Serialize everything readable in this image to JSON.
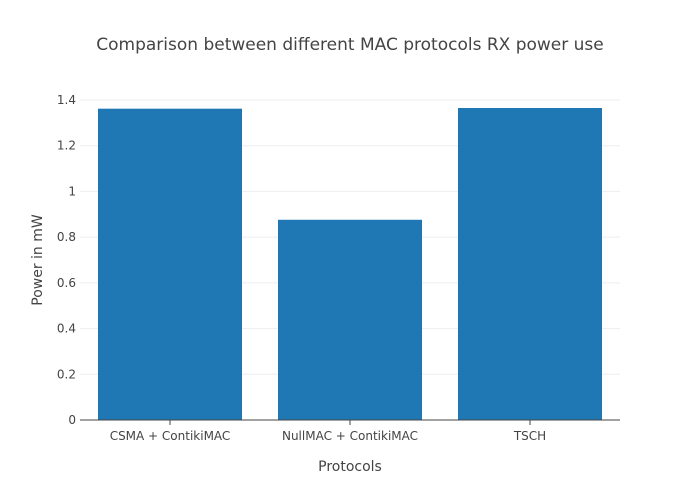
{
  "chart_data": {
    "type": "bar",
    "title": "Comparison between different MAC protocols RX power use",
    "xlabel": "Protocols",
    "ylabel": "Power in mW",
    "categories": [
      "CSMA + ContikiMAC",
      "NullMAC + ContikiMAC",
      "TSCH"
    ],
    "values": [
      1.362,
      0.876,
      1.365
    ],
    "ylim": [
      0,
      1.4
    ],
    "yticks": [
      0,
      0.2,
      0.4,
      0.6,
      0.8,
      1,
      1.2,
      1.4
    ],
    "ytick_labels": [
      "0",
      "0.2",
      "0.4",
      "0.6",
      "0.8",
      "1",
      "1.2",
      "1.4"
    ],
    "grid": true,
    "legend": "none",
    "bar_color": "#1f77b4"
  }
}
